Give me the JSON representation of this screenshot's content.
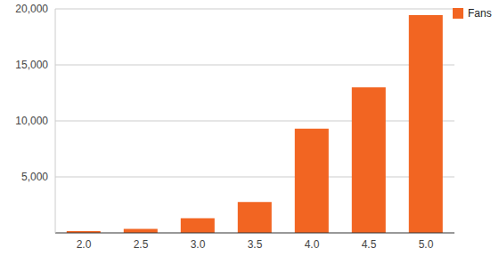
{
  "chart_data": {
    "type": "bar",
    "categories": [
      "2.0",
      "2.5",
      "3.0",
      "3.5",
      "4.0",
      "4.5",
      "5.0"
    ],
    "series": [
      {
        "name": "Fans",
        "color": "#f26522",
        "values": [
          150,
          350,
          1300,
          2750,
          9300,
          13000,
          19450
        ]
      }
    ],
    "ylim": [
      0,
      20000
    ],
    "yticks": [
      {
        "value": 5000,
        "label": "5,000"
      },
      {
        "value": 10000,
        "label": "10,000"
      },
      {
        "value": 15000,
        "label": "15,000"
      },
      {
        "value": 20000,
        "label": "20,000"
      }
    ],
    "grid": true,
    "legend": "top-right"
  }
}
